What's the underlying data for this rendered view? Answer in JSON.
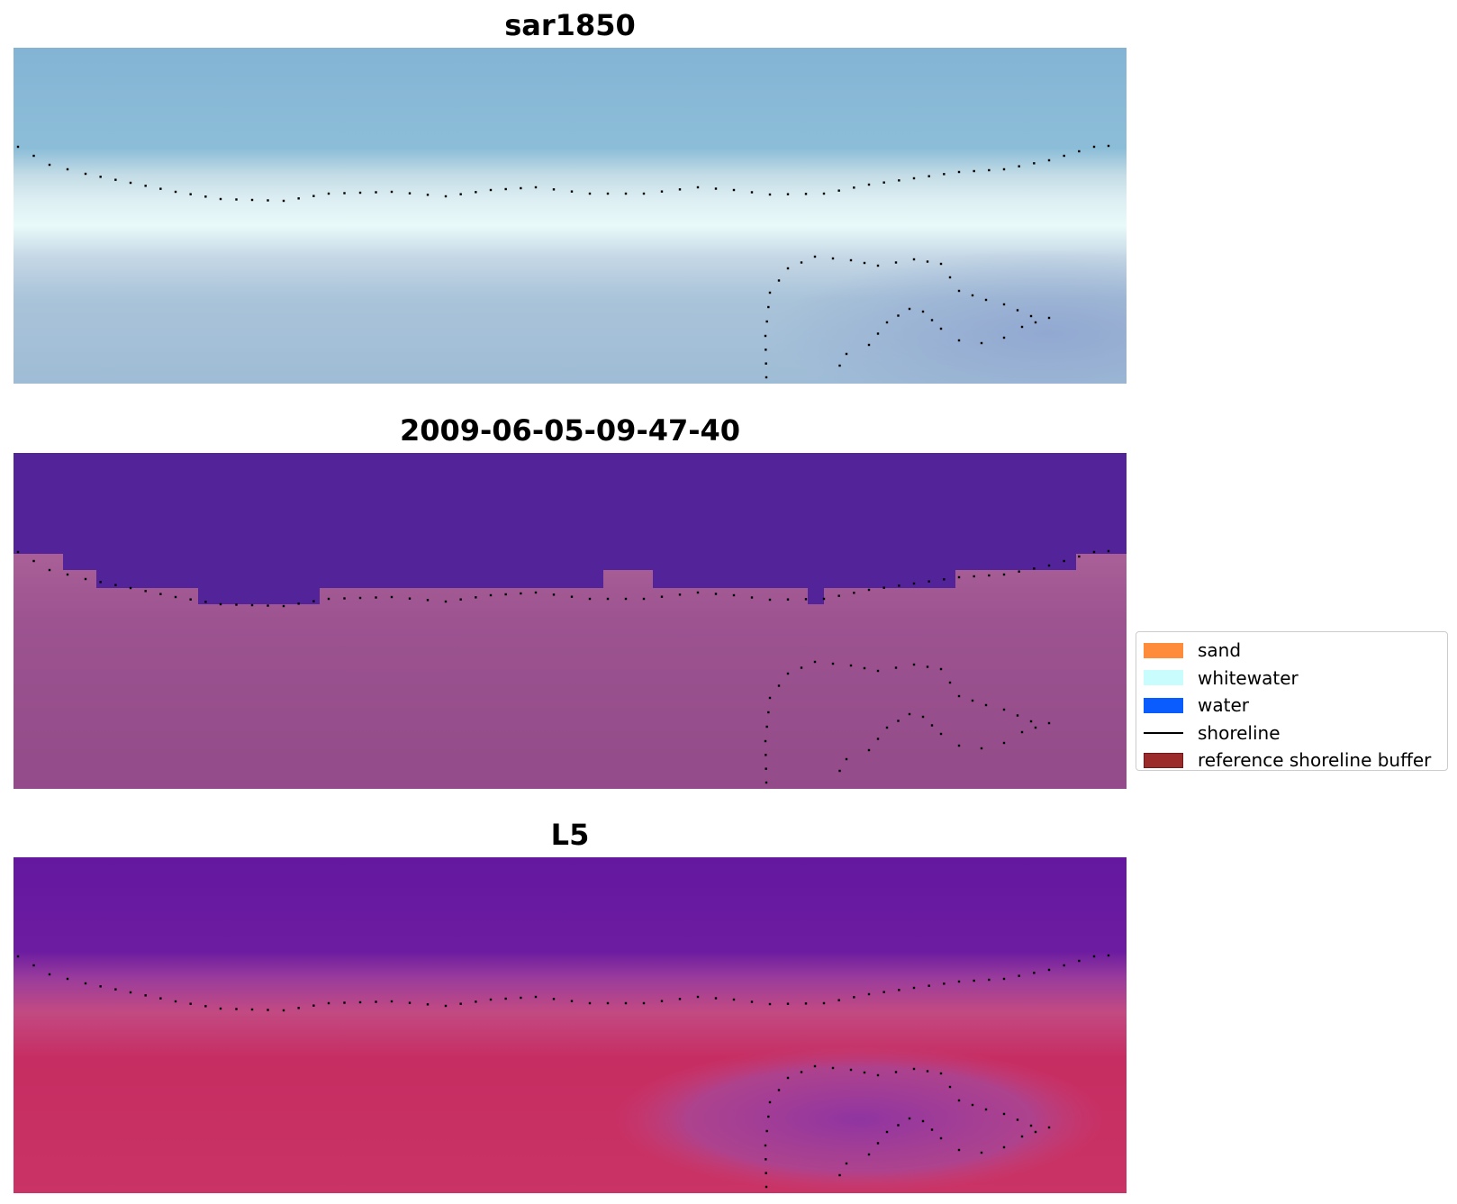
{
  "panels": [
    {
      "title": "sar1850"
    },
    {
      "title": "2009-06-05-09-47-40"
    },
    {
      "title": "L5"
    }
  ],
  "legend": {
    "items": [
      {
        "label": "sand",
        "color": "#ff8c3a",
        "kind": "patch"
      },
      {
        "label": "whitewater",
        "color": "#c9fcfc",
        "kind": "patch"
      },
      {
        "label": "water",
        "color": "#0a5cff",
        "kind": "patch"
      },
      {
        "label": "shoreline",
        "color": "#000000",
        "kind": "line"
      },
      {
        "label": "reference shoreline buffer",
        "color": "#9b2b2b",
        "kind": "patch"
      }
    ]
  },
  "colors": {
    "sar_water": "#86b6d6",
    "sar_surf": "#e6f8f8",
    "sar_land": "#a2bfd6",
    "class_water": "#522399",
    "class_land": "#984f8c",
    "l5_water": "#6a1aa0",
    "l5_land": "#c4295e"
  }
}
